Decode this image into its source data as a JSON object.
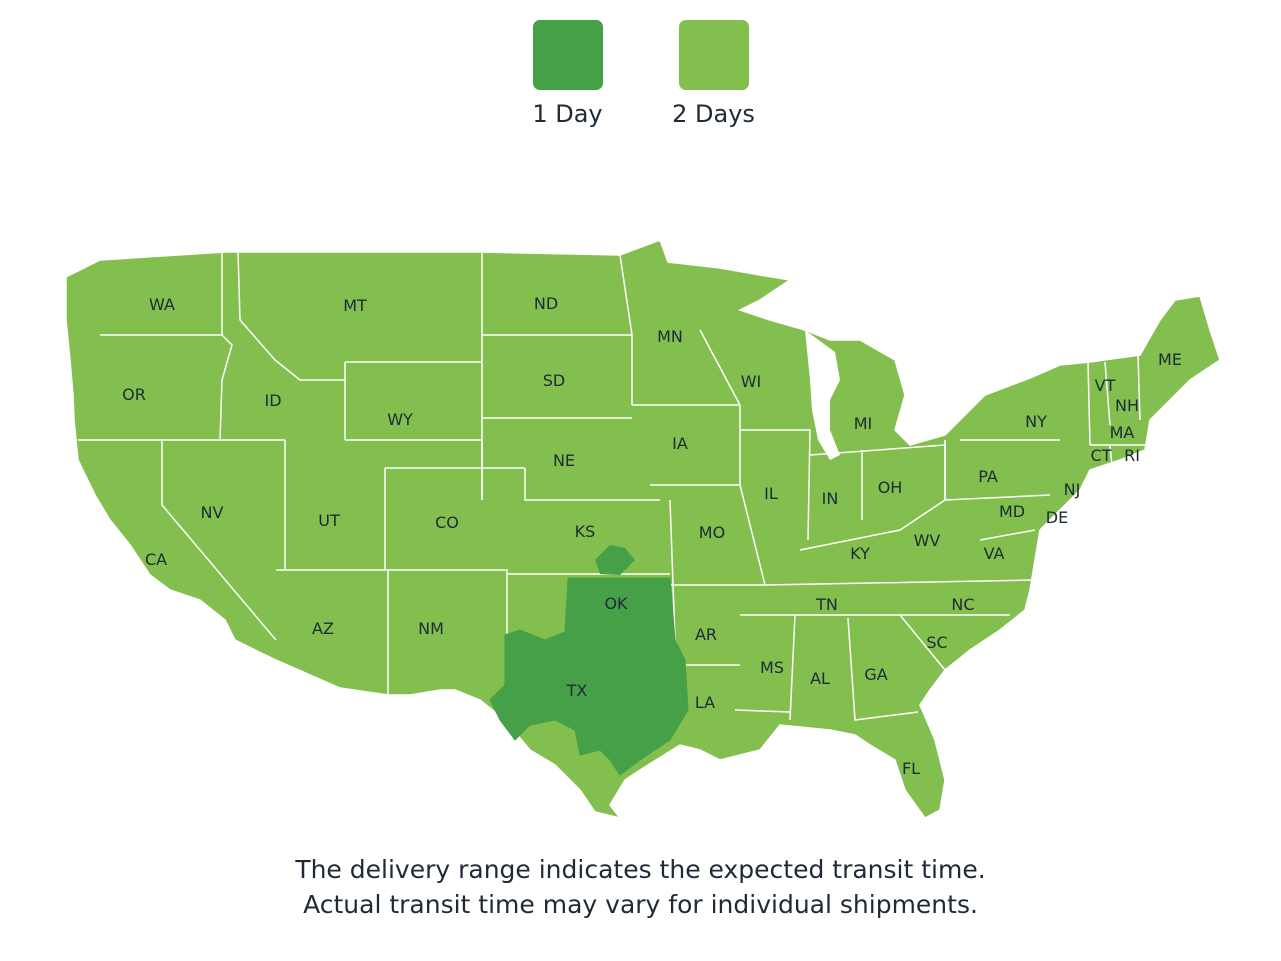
{
  "legend": {
    "items": [
      {
        "label": "1 Day",
        "color": "#46a047"
      },
      {
        "label": "2 Days",
        "color": "#82bf4e"
      }
    ]
  },
  "map": {
    "state_labels": [
      "WA",
      "OR",
      "CA",
      "ID",
      "NV",
      "MT",
      "WY",
      "UT",
      "AZ",
      "CO",
      "NM",
      "ND",
      "SD",
      "NE",
      "KS",
      "OK",
      "TX",
      "MN",
      "IA",
      "MO",
      "AR",
      "LA",
      "WI",
      "IL",
      "MI",
      "IN",
      "KY",
      "TN",
      "MS",
      "AL",
      "GA",
      "FL",
      "OH",
      "WV",
      "VA",
      "NC",
      "SC",
      "PA",
      "NY",
      "MD",
      "DE",
      "NJ",
      "CT",
      "RI",
      "MA",
      "VT",
      "NH",
      "ME"
    ],
    "one_day_states": [
      "OK",
      "TX"
    ],
    "two_day_color": "#82bf4e",
    "one_day_color": "#46a047",
    "border_color": "#ffffff"
  },
  "footer": {
    "line1": "The delivery range indicates the expected transit time.",
    "line2": "Actual transit time may vary for individual shipments."
  }
}
